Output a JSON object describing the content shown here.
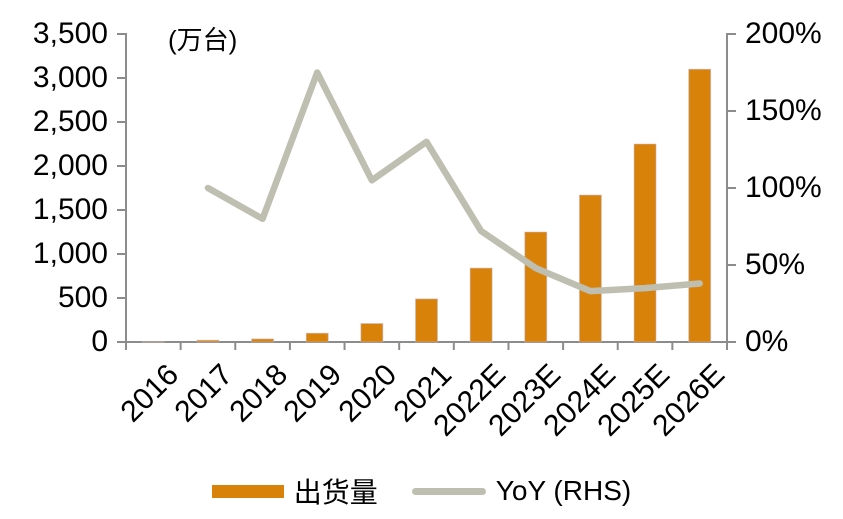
{
  "chart": {
    "unit_label": "(万台)",
    "colors": {
      "bar": "#D9820A",
      "line": "#BFBFB1",
      "axis": "#8C8C8C",
      "text": "#000000"
    }
  },
  "chart_data": {
    "type": "bar+line",
    "title": "(万台)",
    "categories": [
      "2016",
      "2017",
      "2018",
      "2019",
      "2020",
      "2021",
      "2022E",
      "2023E",
      "2024E",
      "2025E",
      "2026E"
    ],
    "series": [
      {
        "name": "出货量",
        "type": "bar",
        "axis": "left",
        "color": "#D9820A",
        "values": [
          2,
          20,
          35,
          100,
          210,
          490,
          840,
          1250,
          1670,
          2250,
          3100
        ]
      },
      {
        "name": "YoY (RHS)",
        "type": "line",
        "axis": "right",
        "color": "#BFBFB1",
        "values": [
          null,
          100,
          80,
          175,
          105,
          130,
          72,
          48,
          33,
          35,
          38
        ]
      }
    ],
    "left_axis": {
      "label": "(万台)",
      "min": 0,
      "max": 3500,
      "step": 500,
      "tick_labels": [
        "0",
        "500",
        "1,000",
        "1,500",
        "2,000",
        "2,500",
        "3,000",
        "3,500"
      ]
    },
    "right_axis": {
      "min": 0,
      "max": 200,
      "step": 50,
      "unit": "%",
      "tick_labels": [
        "0%",
        "50%",
        "100%",
        "150%",
        "200%"
      ]
    },
    "legend_position": "bottom",
    "grid": false
  }
}
